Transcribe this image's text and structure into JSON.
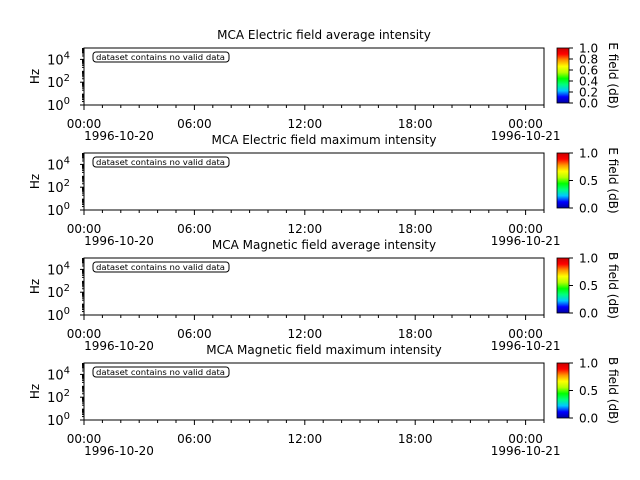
{
  "chart_data": [
    {
      "type": "heatmap",
      "title": "MCA  Electric field average intensity",
      "ylabel": "Hz",
      "y_ticks": [
        {
          "base": "10",
          "exp": "0"
        },
        {
          "base": "10",
          "exp": "2"
        },
        {
          "base": "10",
          "exp": "4"
        }
      ],
      "y_scale": "log",
      "ylim": [
        1,
        100000
      ],
      "x_tick_labels": [
        "00:00",
        "06:00",
        "12:00",
        "18:00",
        "00:00"
      ],
      "x_dates": {
        "start": "1996-10-20",
        "end": "1996-10-21"
      },
      "xlim": [
        "1996-10-20 00:00",
        "1996-10-21 01:00"
      ],
      "annotation": "dataset contains no valid data",
      "values": [],
      "colorbar": {
        "label": "E field (dB)",
        "range": [
          0,
          1
        ],
        "ticks": [
          "0.0",
          "0.2",
          "0.4",
          "0.6",
          "0.8",
          "1.0"
        ]
      }
    },
    {
      "type": "heatmap",
      "title": "MCA  Electric field maximum intensity",
      "ylabel": "Hz",
      "y_ticks": [
        {
          "base": "10",
          "exp": "0"
        },
        {
          "base": "10",
          "exp": "2"
        },
        {
          "base": "10",
          "exp": "4"
        }
      ],
      "y_scale": "log",
      "ylim": [
        1,
        100000
      ],
      "x_tick_labels": [
        "00:00",
        "06:00",
        "12:00",
        "18:00",
        "00:00"
      ],
      "x_dates": {
        "start": "1996-10-20",
        "end": "1996-10-21"
      },
      "xlim": [
        "1996-10-20 00:00",
        "1996-10-21 01:00"
      ],
      "annotation": "dataset contains no valid data",
      "values": [],
      "colorbar": {
        "label": "E field (dB)",
        "range": [
          0,
          1
        ],
        "ticks": [
          "0.0",
          "0.5",
          "1.0"
        ]
      }
    },
    {
      "type": "heatmap",
      "title": "MCA  Magnetic field average intensity",
      "ylabel": "Hz",
      "y_ticks": [
        {
          "base": "10",
          "exp": "0"
        },
        {
          "base": "10",
          "exp": "2"
        },
        {
          "base": "10",
          "exp": "4"
        }
      ],
      "y_scale": "log",
      "ylim": [
        1,
        100000
      ],
      "x_tick_labels": [
        "00:00",
        "06:00",
        "12:00",
        "18:00",
        "00:00"
      ],
      "x_dates": {
        "start": "1996-10-20",
        "end": "1996-10-21"
      },
      "xlim": [
        "1996-10-20 00:00",
        "1996-10-21 01:00"
      ],
      "annotation": "dataset contains no valid data",
      "values": [],
      "colorbar": {
        "label": "B field (dB)",
        "range": [
          0,
          1
        ],
        "ticks": [
          "0.0",
          "0.5",
          "1.0"
        ]
      }
    },
    {
      "type": "heatmap",
      "title": "MCA  Magnetic field maximum intensity",
      "ylabel": "Hz",
      "y_ticks": [
        {
          "base": "10",
          "exp": "0"
        },
        {
          "base": "10",
          "exp": "2"
        },
        {
          "base": "10",
          "exp": "4"
        }
      ],
      "y_scale": "log",
      "ylim": [
        1,
        100000
      ],
      "x_tick_labels": [
        "00:00",
        "06:00",
        "12:00",
        "18:00",
        "00:00"
      ],
      "x_dates": {
        "start": "1996-10-20",
        "end": "1996-10-21"
      },
      "xlim": [
        "1996-10-20 00:00",
        "1996-10-21 01:00"
      ],
      "annotation": "dataset contains no valid data",
      "values": [],
      "colorbar": {
        "label": "B field (dB)",
        "range": [
          0,
          1
        ],
        "ticks": [
          "0.0",
          "0.5",
          "1.0"
        ]
      }
    }
  ],
  "colormap": [
    "#0000a0",
    "#0000ff",
    "#00c8ff",
    "#00ff80",
    "#00ff00",
    "#b4ff00",
    "#ffff00",
    "#ff9600",
    "#ff0000",
    "#c80000"
  ]
}
